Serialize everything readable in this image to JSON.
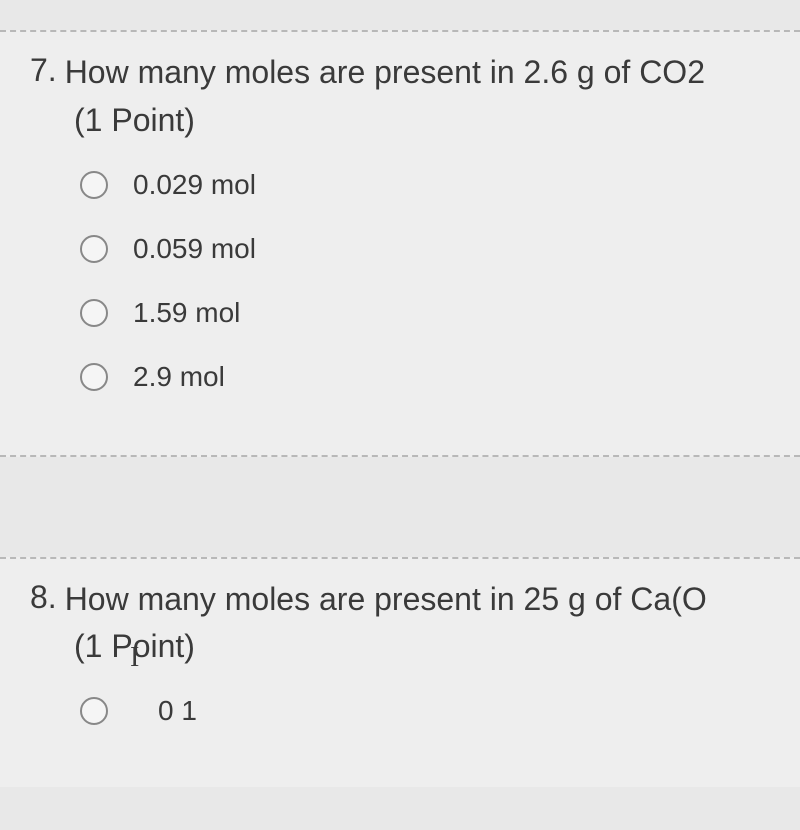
{
  "question7": {
    "number": "7.",
    "text": "How many moles are present in 2.6 g of CO2",
    "points": "(1 Point)",
    "options": [
      {
        "label": "0.029 mol"
      },
      {
        "label": "0.059 mol"
      },
      {
        "label": "1.59 mol"
      },
      {
        "label": "2.9 mol"
      }
    ]
  },
  "cursor": "I",
  "question8": {
    "number": "8.",
    "text": "How many moles are present in 25 g of Ca(O",
    "points": "(1 Point)",
    "partial_option": "0 1"
  },
  "colors": {
    "background": "#e8e8e8",
    "block_background": "#eeeeee",
    "text": "#3a3a3a",
    "border_dashed": "#b8b8b8",
    "radio_border": "#888888",
    "radio_fill": "#f5f5f5"
  },
  "typography": {
    "question_fontsize": 32,
    "option_fontsize": 28,
    "font_family": "Segoe UI"
  }
}
